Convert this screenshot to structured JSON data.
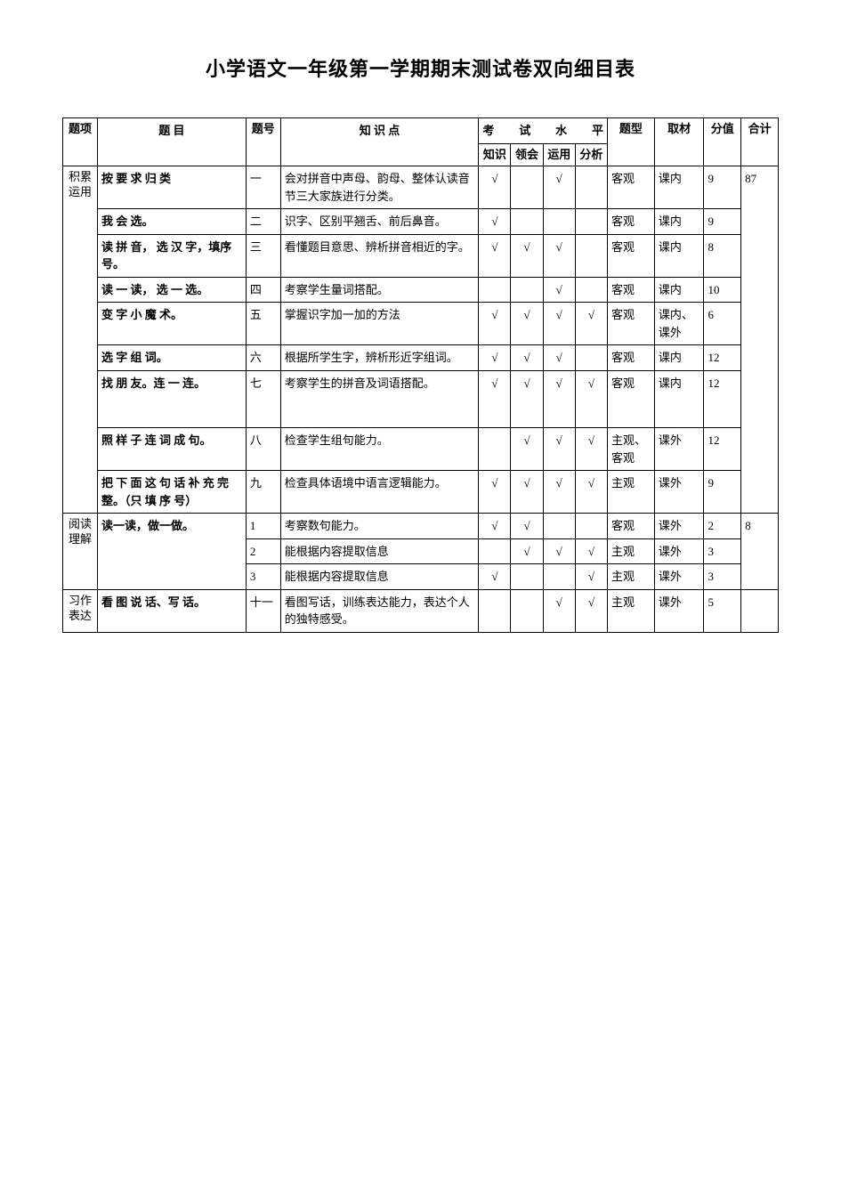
{
  "title": "小学语文一年级第一学期期末测试卷双向细目表",
  "headers": {
    "category": "题项",
    "item": "题 目",
    "number": "题号",
    "knowledge": "知 识 点",
    "level_group": "考 试 水 平",
    "levels": {
      "knowledge": "知识",
      "understand": "领会",
      "apply": "运用",
      "analyze": "分析"
    },
    "qtype": "题型",
    "source": "取材",
    "score": "分值",
    "total": "合计"
  },
  "categories": {
    "accum": "积累运用",
    "read": "阅读理解",
    "write": "习作表达"
  },
  "totals": {
    "accum": "87",
    "read": "8",
    "write": ""
  },
  "rows": [
    {
      "cat": "accum",
      "title": "按 要 求 归 类",
      "num": "一",
      "kp": "会对拼音中声母、韵母、整体认读音节三大家族进行分类。",
      "lv": [
        "√",
        "",
        "√",
        ""
      ],
      "type": "客观",
      "src": "课内",
      "score": "9"
    },
    {
      "cat": "accum",
      "title": "我 会 选。",
      "num": "二",
      "kp": "识字、区别平翘舌、前后鼻音。",
      "lv": [
        "√",
        "",
        "",
        ""
      ],
      "type": "客观",
      "src": "课内",
      "score": "9"
    },
    {
      "cat": "accum",
      "title": "读 拼 音， 选 汉 字，填序 号。",
      "num": "三",
      "kp": "看懂题目意思、辨析拼音相近的字。",
      "lv": [
        "√",
        "√",
        "√",
        ""
      ],
      "type": "客观",
      "src": "课内",
      "score": "8"
    },
    {
      "cat": "accum",
      "title": "读 一 读， 选 一 选。",
      "num": "四",
      "kp": "考察学生量词搭配。",
      "lv": [
        "",
        "",
        "√",
        ""
      ],
      "type": "客观",
      "src": "课内",
      "score": "10"
    },
    {
      "cat": "accum",
      "title": "变 字 小 魔 术。",
      "num": "五",
      "kp": "掌握识字加一加的方法",
      "lv": [
        "√",
        "√",
        "√",
        "√"
      ],
      "type": "客观",
      "src": "课内、课外",
      "score": "6"
    },
    {
      "cat": "accum",
      "title": "选 字 组 词。",
      "num": "六",
      "kp": "根据所学生字，辨析形近字组词。",
      "lv": [
        "√",
        "√",
        "√",
        ""
      ],
      "type": "客观",
      "src": "课内",
      "score": "12"
    },
    {
      "cat": "accum",
      "title": "找 朋 友。连 一 连。",
      "num": "七",
      "kp": "考察学生的拼音及词语搭配。",
      "lv": [
        "√",
        "√",
        "√",
        "√"
      ],
      "type": "客观",
      "src": "课内",
      "score": "12",
      "tall": true
    },
    {
      "cat": "accum",
      "title": "照 样 子 连 词 成 句。",
      "num": "八",
      "kp": "检查学生组句能力。",
      "lv": [
        "",
        "√",
        "√",
        "√"
      ],
      "type": "主观、客观",
      "src": "课外",
      "score": "12"
    },
    {
      "cat": "accum",
      "title": "把 下 面 这 句 话 补 充 完 整。（只 填 序 号）",
      "num": "九",
      "kp": "检查具体语境中语言逻辑能力。",
      "lv": [
        "√",
        "√",
        "√",
        "√"
      ],
      "type": "主观",
      "src": "课外",
      "score": "9"
    },
    {
      "cat": "read",
      "title": "读一读，做一做。",
      "num": "1",
      "kp": "考察数句能力。",
      "lv": [
        "√",
        "√",
        "",
        ""
      ],
      "type": "客观",
      "src": "课外",
      "score": "2"
    },
    {
      "cat": "read",
      "title": "",
      "num": "2",
      "kp": "能根据内容提取信息",
      "lv": [
        "",
        "√",
        "√",
        "√"
      ],
      "type": "主观",
      "src": "课外",
      "score": "3"
    },
    {
      "cat": "read",
      "title": "",
      "num": "3",
      "kp": "能根据内容提取信息",
      "lv": [
        "√",
        "",
        "",
        "√"
      ],
      "type": "主观",
      "src": "课外",
      "score": "3"
    },
    {
      "cat": "write",
      "title": "看 图 说 话、写 话。",
      "num": "十一",
      "kp": "看图写话，训练表达能力，表达个人的独特感受。",
      "lv": [
        "",
        "",
        "√",
        "√"
      ],
      "type": "主观",
      "src": "课外",
      "score": "5"
    }
  ]
}
